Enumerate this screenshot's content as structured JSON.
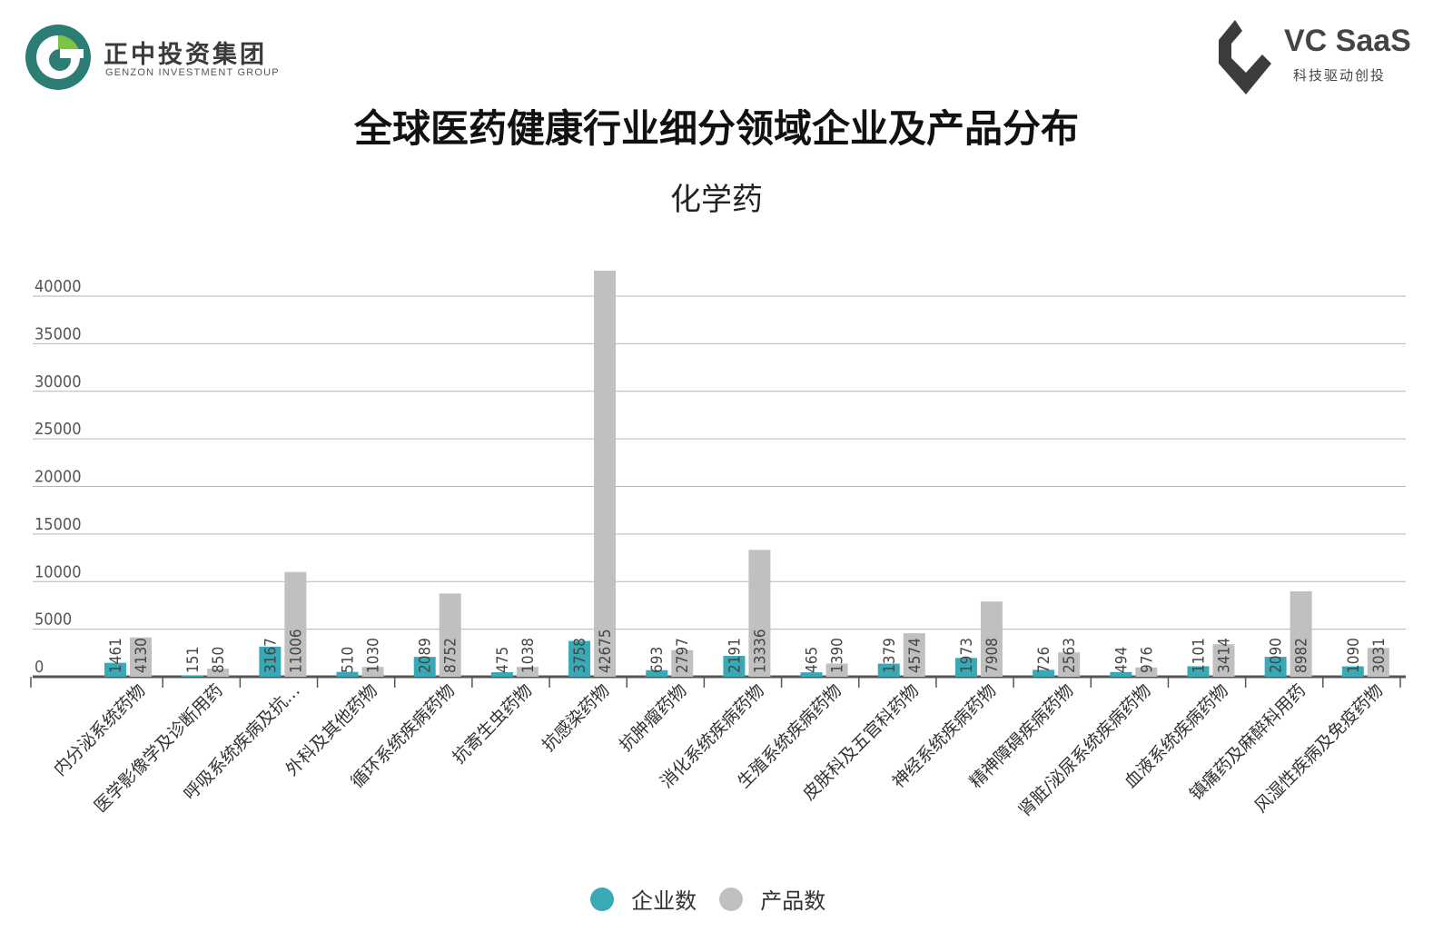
{
  "header": {
    "left_logo": {
      "name_cn": "正中投资集团",
      "name_en": "GENZON INVESTMENT GROUP"
    },
    "right_logo": {
      "brand": "VC SaaS",
      "slogan": "科技驱动创投"
    }
  },
  "colors": {
    "company": "#3aa9b6",
    "product": "#c0c0c0",
    "grid": "#b5b5b5",
    "axis": "#555555"
  },
  "chart_data": {
    "type": "bar",
    "title": "全球医药健康行业细分领域企业及产品分布",
    "subtitle": "化学药",
    "categories": [
      "内分泌系统药物",
      "医学影像学及诊断用药",
      "呼吸系统疾病及抗…",
      "外科及其他药物",
      "循环系统疾病药物",
      "抗寄生虫药物",
      "抗感染药物",
      "抗肿瘤药物",
      "消化系统疾病药物",
      "生殖系统疾病药物",
      "皮肤科及五官科药物",
      "神经系统疾病药物",
      "精神障碍疾病药物",
      "肾脏/泌尿系统疾病药物",
      "血液系统疾病药物",
      "镇痛药及麻醉科用药",
      "风湿性疾病及免疫药物"
    ],
    "series": [
      {
        "name": "企业数",
        "values": [
          1461,
          151,
          3167,
          510,
          2089,
          475,
          3758,
          693,
          2191,
          465,
          1379,
          1973,
          726,
          494,
          1101,
          2090,
          1090
        ]
      },
      {
        "name": "产品数",
        "values": [
          4130,
          850,
          11006,
          1030,
          8752,
          1038,
          42675,
          2797,
          13336,
          1390,
          4574,
          7908,
          2563,
          976,
          3414,
          8982,
          3031
        ]
      }
    ],
    "ylim": [
      0,
      42675
    ],
    "yticks": [
      0,
      5000,
      10000,
      15000,
      20000,
      25000,
      30000,
      35000,
      40000
    ],
    "grid": true,
    "legend": "bottom-center",
    "xlabel": "",
    "ylabel": ""
  }
}
